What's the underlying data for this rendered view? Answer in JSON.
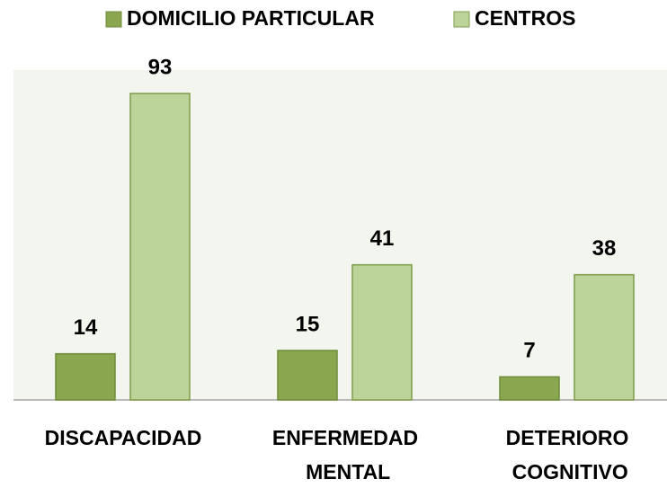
{
  "chart_data": {
    "type": "bar",
    "categories": [
      "DISCAPACIDAD",
      "ENFERMEDAD MENTAL",
      "DETERIORO COGNITIVO"
    ],
    "series": [
      {
        "name": "DOMICILIO PARTICULAR",
        "color": "#8aa64e",
        "values": [
          14,
          15,
          7
        ]
      },
      {
        "name": "CENTROS",
        "color": "#bcd39a",
        "values": [
          93,
          41,
          38
        ]
      }
    ],
    "legend": "top"
  }
}
